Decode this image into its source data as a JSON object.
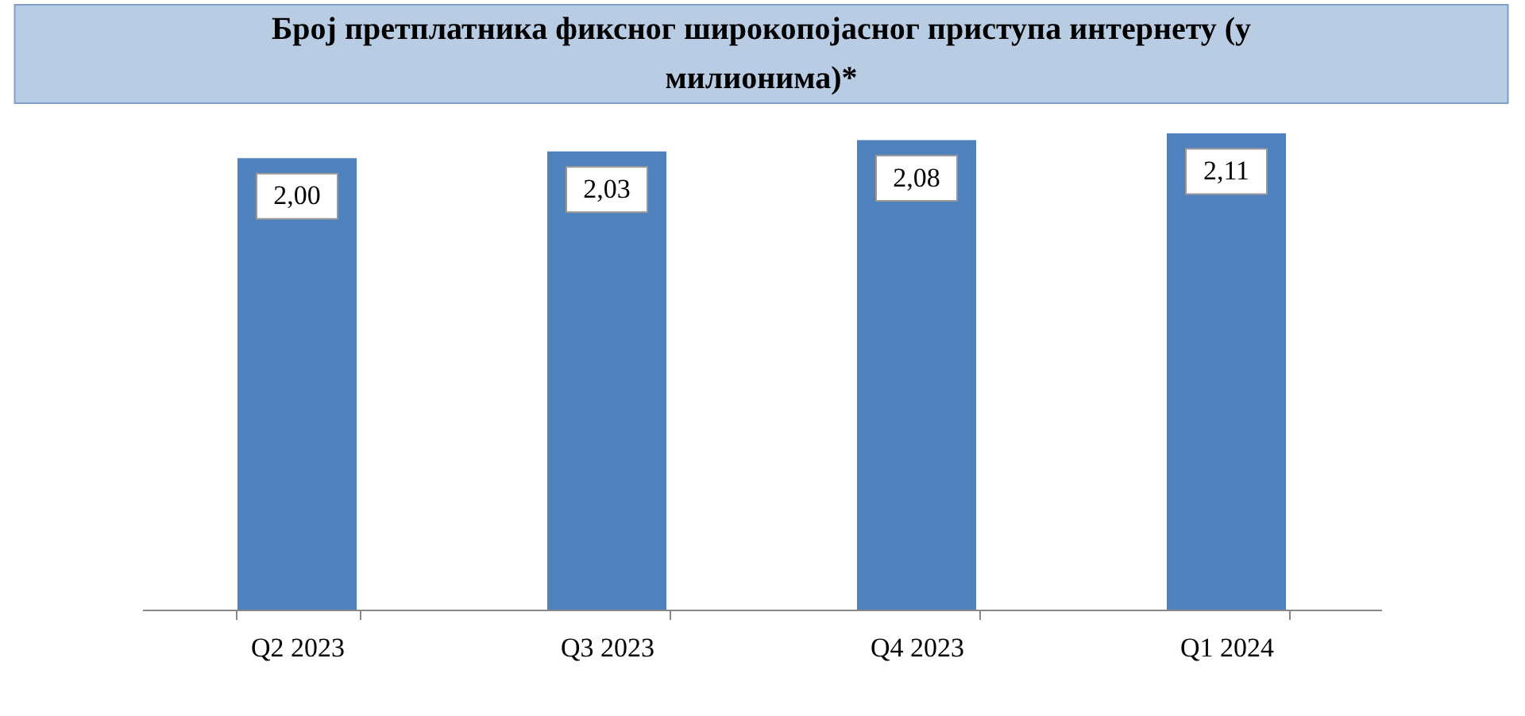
{
  "chart_data": {
    "type": "bar",
    "title": "Број претплатника фиксног широкопојасног приступа интернету (у милионима)*",
    "categories": [
      "Q2 2023",
      "Q3 2023",
      "Q4 2023",
      "Q1 2024"
    ],
    "values": [
      2.0,
      2.03,
      2.08,
      2.11
    ],
    "value_labels": [
      "2,00",
      "2,03",
      "2,08",
      "2,11"
    ],
    "color": "#4f81bd"
  }
}
